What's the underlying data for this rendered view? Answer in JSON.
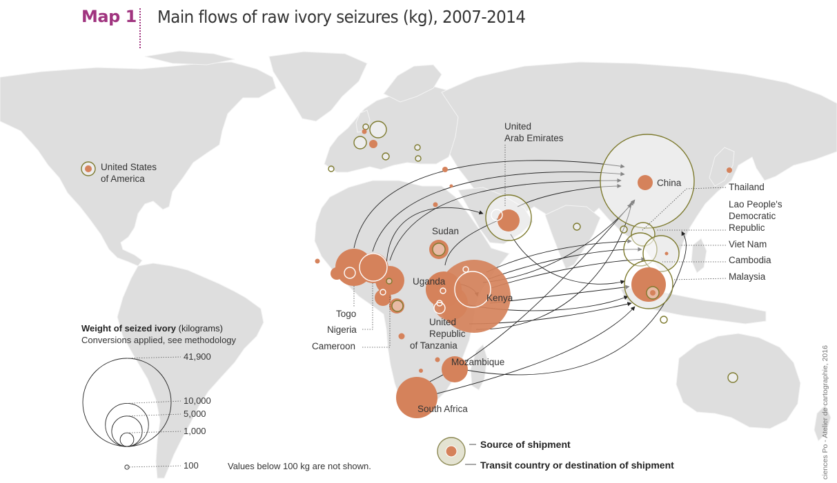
{
  "header": {
    "map_label": "Map 1",
    "title": "Main flows of raw ivory seizures (kg), 2007-2014"
  },
  "colors": {
    "source": "#d5825b",
    "transit_ring": "#7d7a2e",
    "land": "#dedede",
    "accent": "#a0347f"
  },
  "labels": {
    "usa": [
      "United States",
      "of America"
    ],
    "uae": [
      "United",
      "Arab Emirates"
    ],
    "china": "China",
    "thailand": "Thailand",
    "lao": [
      "Lao People's",
      "Democratic",
      "Republic"
    ],
    "vietnam": "Viet Nam",
    "cambodia": "Cambodia",
    "malaysia": "Malaysia",
    "sudan": "Sudan",
    "uganda": "Uganda",
    "kenya": "Kenya",
    "tanzania": [
      "United",
      "Republic",
      "of Tanzania"
    ],
    "mozambique": "Mozambique",
    "south_africa": "South Africa",
    "togo": "Togo",
    "nigeria": "Nigeria",
    "cameroon": "Cameroon"
  },
  "legend": {
    "title_bold": "Weight of seized ivory",
    "title_rest": " (kilograms)",
    "subtitle": "Conversions applied, see methodology",
    "scale": [
      {
        "value": 41900,
        "label": "41,900"
      },
      {
        "value": 10000,
        "label": "10,000"
      },
      {
        "value": 5000,
        "label": "5,000"
      },
      {
        "value": 1000,
        "label": "1,000"
      },
      {
        "value": 100,
        "label": "100"
      }
    ],
    "note": "Values below 100 kg are not shown.",
    "source_label": "Source of shipment",
    "transit_label": "Transit country or destination of shipment"
  },
  "credit": "ciences Po - Atelier de cartographie, 2016"
}
